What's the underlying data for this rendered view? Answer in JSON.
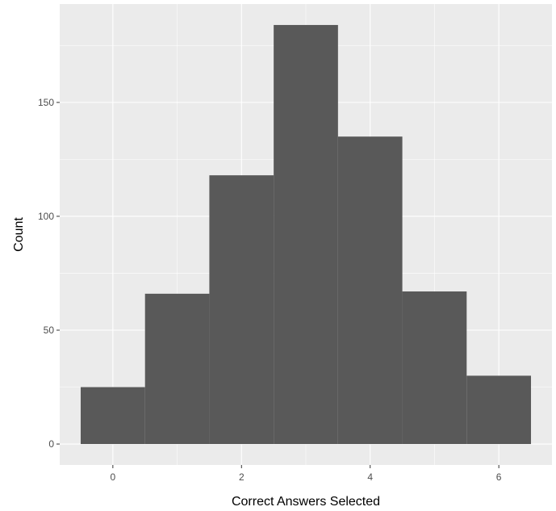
{
  "chart_data": {
    "type": "bar",
    "subtype": "histogram",
    "title": "",
    "xlabel": "Correct Answers Selected",
    "ylabel": "Count",
    "bins": [
      {
        "center": 0,
        "count": 25
      },
      {
        "center": 1,
        "count": 66
      },
      {
        "center": 2,
        "count": 118
      },
      {
        "center": 3,
        "count": 184
      },
      {
        "center": 4,
        "count": 135
      },
      {
        "center": 5,
        "count": 67
      },
      {
        "center": 6,
        "count": 30
      }
    ],
    "bin_width": 1,
    "xlim": [
      -0.826,
      6.826
    ],
    "ylim": [
      -9.2,
      193.2
    ],
    "x_ticks": [
      0,
      2,
      4,
      6
    ],
    "x_tick_labels": [
      "0",
      "2",
      "4",
      "6"
    ],
    "y_ticks": [
      0,
      50,
      100,
      150
    ],
    "y_tick_labels": [
      "0",
      "50",
      "100",
      "150"
    ],
    "grid": true,
    "legend": "none",
    "colors": {
      "panel_background": "#ebebeb",
      "grid_major": "#ffffff",
      "bar_fill": "#595959",
      "tick_label": "#4d4d4d",
      "tick_mark": "#333333",
      "axis_title": "#000000"
    }
  }
}
